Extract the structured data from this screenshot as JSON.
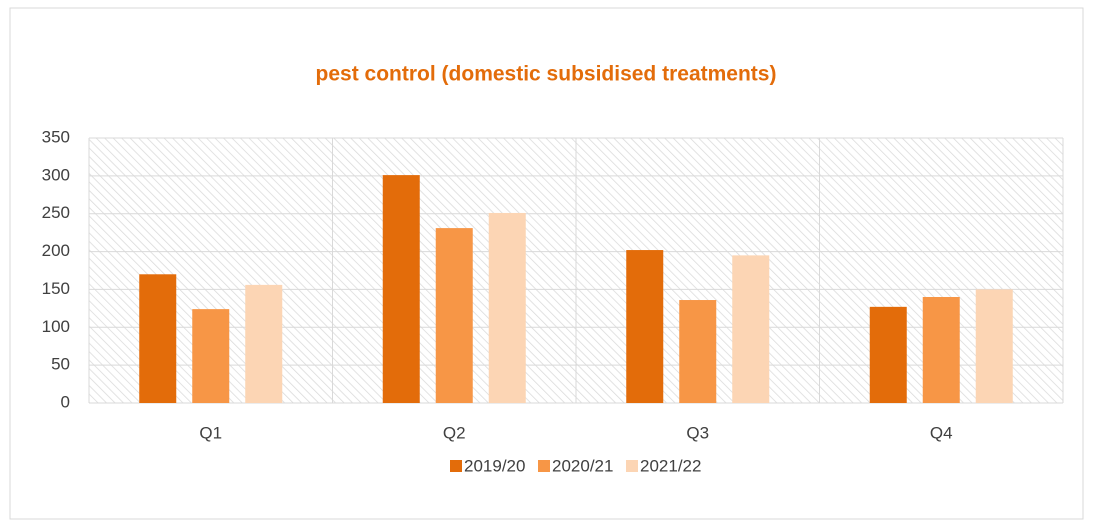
{
  "chart_data": {
    "type": "bar",
    "title": "pest control (domestic subsidised treatments)",
    "categories": [
      "Q1",
      "Q2",
      "Q3",
      "Q4"
    ],
    "series": [
      {
        "name": "2019/20",
        "color": "#e36c0a",
        "values": [
          170,
          301,
          202,
          127
        ]
      },
      {
        "name": "2020/21",
        "color": "#f79646",
        "values": [
          124,
          231,
          136,
          140
        ]
      },
      {
        "name": "2021/22",
        "color": "#fcd5b4",
        "values": [
          156,
          251,
          195,
          150
        ]
      }
    ],
    "ylim": [
      0,
      350
    ],
    "yticks": [
      0,
      50,
      100,
      150,
      200,
      250,
      300,
      350
    ],
    "grid": true,
    "legend": "bottom"
  }
}
